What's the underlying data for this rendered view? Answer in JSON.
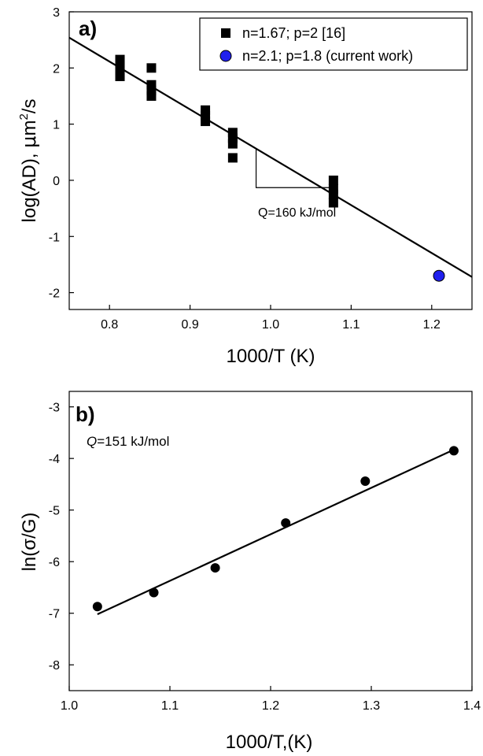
{
  "chart_data": [
    {
      "panel": "a)",
      "type": "scatter",
      "xlabel": "1000/T (K)",
      "ylabel": "log(AD), μm²/s",
      "ylabel_parts": {
        "prefix": "log(AD), ",
        "mu": "μ",
        "unit_m": "m",
        "sup": "2",
        "suffix": "/s"
      },
      "xlim": [
        0.75,
        1.25
      ],
      "ylim": [
        -2.3,
        3.0
      ],
      "xticks": [
        0.8,
        0.9,
        1.0,
        1.1,
        1.2
      ],
      "xtick_labels": [
        "0.8",
        "0.9",
        "1.0",
        "1.1",
        "1.2"
      ],
      "yticks": [
        -2,
        -1,
        0,
        1,
        2,
        3
      ],
      "ytick_labels": [
        "-2",
        "-1",
        "0",
        "1",
        "2",
        "3"
      ],
      "legend_position": "top-right",
      "series": [
        {
          "name": "n=1.67; p=2 [16]",
          "marker": "square",
          "color": "#000000",
          "points": [
            [
              0.813,
              2.15
            ],
            [
              0.813,
              2.05
            ],
            [
              0.813,
              1.95
            ],
            [
              0.813,
              1.85
            ],
            [
              0.852,
              2.0
            ],
            [
              0.852,
              1.7
            ],
            [
              0.852,
              1.6
            ],
            [
              0.852,
              1.5
            ],
            [
              0.919,
              1.25
            ],
            [
              0.919,
              1.15
            ],
            [
              0.919,
              1.05
            ],
            [
              0.953,
              0.85
            ],
            [
              0.953,
              0.75
            ],
            [
              0.953,
              0.65
            ],
            [
              0.953,
              0.4
            ],
            [
              1.078,
              0.0
            ],
            [
              1.078,
              -0.15
            ],
            [
              1.078,
              -0.25
            ],
            [
              1.078,
              -0.4
            ]
          ]
        },
        {
          "name": "n=2.1; p=1.8 (current work)",
          "marker": "circle",
          "color": "#2020ee",
          "points": [
            [
              1.209,
              -1.7
            ]
          ]
        }
      ],
      "fit_line": {
        "x": [
          0.75,
          1.25
        ],
        "y": [
          2.54,
          -1.72
        ]
      },
      "slope_triangle": {
        "x1": 0.982,
        "x2": 1.078,
        "y_top": 0.55,
        "y_base": -0.13
      },
      "annotation": "Q=160 kJ/mol"
    },
    {
      "panel": "b)",
      "type": "scatter",
      "xlabel": "1000/T,(K)",
      "ylabel": "ln(σ/G)",
      "xlim": [
        1.0,
        1.4
      ],
      "ylim": [
        -8.5,
        -2.7
      ],
      "xticks": [
        1.0,
        1.1,
        1.2,
        1.3,
        1.4
      ],
      "xtick_labels": [
        "1.0",
        "1.1",
        "1.2",
        "1.3",
        "1.4"
      ],
      "yticks": [
        -8,
        -7,
        -6,
        -5,
        -4,
        -3
      ],
      "ytick_labels": [
        "-8",
        "-7",
        "-6",
        "-5",
        "-4",
        "-3"
      ],
      "series": [
        {
          "marker": "circle",
          "color": "#000000",
          "points": [
            [
              1.028,
              -6.87
            ],
            [
              1.084,
              -6.6
            ],
            [
              1.145,
              -6.12
            ],
            [
              1.215,
              -5.25
            ],
            [
              1.294,
              -4.44
            ],
            [
              1.382,
              -3.85
            ]
          ]
        }
      ],
      "fit_line": {
        "x": [
          1.028,
          1.382
        ],
        "y": [
          -7.02,
          -3.83
        ]
      },
      "annotation": {
        "q": "Q",
        "rest": "=151 kJ/mol"
      }
    }
  ]
}
